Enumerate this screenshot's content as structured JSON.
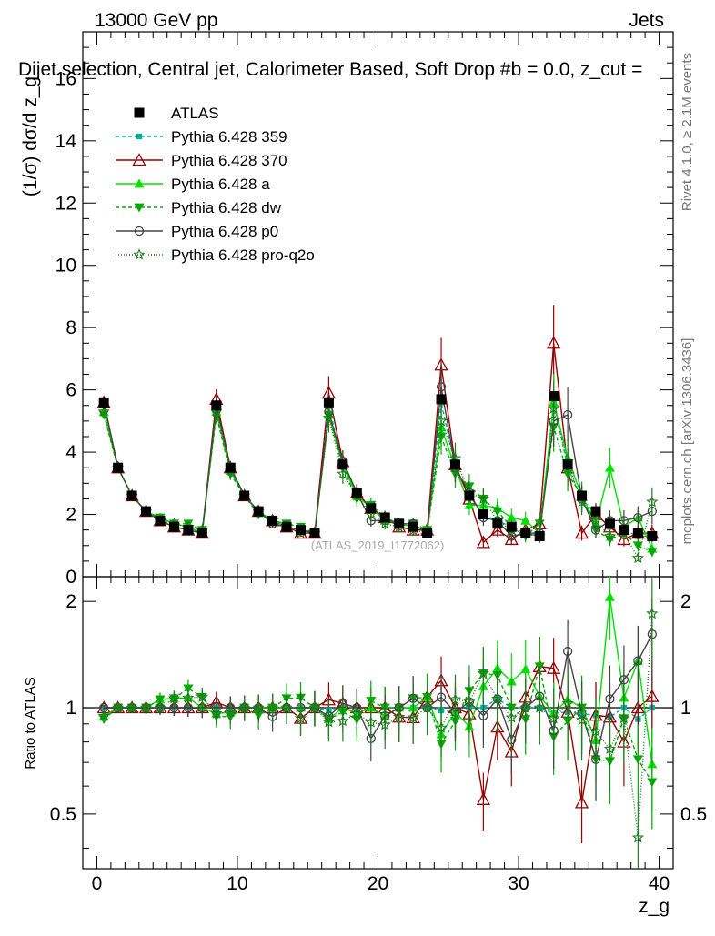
{
  "header": {
    "energy_label": "13000 GeV pp",
    "category_label": "Jets"
  },
  "side_labels": {
    "rivet": "Rivet 4.1.0, ≥ 2.1M events",
    "mcplots": "mcplots.cern.ch [arXiv:1306.3436]"
  },
  "watermark": "(ATLAS_2019_I1772062)",
  "chart_data": [
    {
      "type": "line",
      "title": "Dijet selection, Central jet, Calorimeter Based, Soft Drop #b = 0.0, z_cut =",
      "xlabel": "z_g",
      "ylabel": "(1/σ) dσ/d z_g",
      "xlim": [
        -1,
        41
      ],
      "ylim": [
        0,
        17.5
      ],
      "yticks": [
        0,
        2,
        4,
        6,
        8,
        10,
        12,
        14,
        16
      ],
      "x": [
        0.5,
        1.5,
        2.5,
        3.5,
        4.5,
        5.5,
        6.5,
        7.5,
        8.5,
        9.5,
        10.5,
        11.5,
        12.5,
        13.5,
        14.5,
        15.5,
        16.5,
        17.5,
        18.5,
        19.5,
        20.5,
        21.5,
        22.5,
        23.5,
        24.5,
        25.5,
        26.5,
        27.5,
        28.5,
        29.5,
        30.5,
        31.5,
        32.5,
        33.5,
        34.5,
        35.5,
        36.5,
        37.5,
        38.5,
        39.5
      ],
      "series": [
        {
          "name": "ATLAS",
          "color": "#000000",
          "marker": "square",
          "dash": "none",
          "values": [
            5.6,
            3.5,
            2.6,
            2.1,
            1.8,
            1.6,
            1.5,
            1.4,
            5.5,
            3.5,
            2.6,
            2.1,
            1.8,
            1.6,
            1.5,
            1.4,
            5.6,
            3.6,
            2.7,
            2.2,
            1.9,
            1.7,
            1.6,
            1.4,
            5.7,
            3.6,
            2.6,
            2.0,
            1.7,
            1.6,
            1.4,
            1.3,
            5.8,
            3.6,
            2.6,
            2.1,
            1.7,
            1.5,
            1.4,
            1.3
          ]
        },
        {
          "name": "Pythia 6.428 359",
          "color": "#00b39b",
          "marker": "square-small",
          "dash": "4,3",
          "values": [
            5.6,
            3.5,
            2.6,
            2.1,
            1.8,
            1.6,
            1.5,
            1.4,
            5.5,
            3.5,
            2.6,
            2.1,
            1.8,
            1.6,
            1.5,
            1.4,
            5.5,
            3.6,
            2.7,
            2.2,
            1.9,
            1.7,
            1.6,
            1.4,
            5.6,
            3.5,
            2.6,
            2.0,
            1.8,
            1.6,
            1.4,
            1.3,
            5.6,
            3.5,
            2.5,
            2.0,
            1.6,
            1.5,
            1.3,
            1.3
          ]
        },
        {
          "name": "Pythia 6.428 370",
          "color": "#990000",
          "marker": "triangle-open",
          "dash": "none",
          "values": [
            5.6,
            3.5,
            2.6,
            2.1,
            1.8,
            1.6,
            1.5,
            1.4,
            5.7,
            3.5,
            2.6,
            2.1,
            1.8,
            1.6,
            1.4,
            1.4,
            5.9,
            3.7,
            2.7,
            2.2,
            1.9,
            1.6,
            1.5,
            1.5,
            6.8,
            3.6,
            2.5,
            1.1,
            1.5,
            1.2,
            1.5,
            1.7,
            7.5,
            3.5,
            1.4,
            2.0,
            1.6,
            1.2,
            1.4,
            1.4
          ]
        },
        {
          "name": "Pythia 6.428 a",
          "color": "#00e000",
          "marker": "triangle",
          "dash": "none",
          "values": [
            5.3,
            3.5,
            2.6,
            2.1,
            1.9,
            1.7,
            1.6,
            1.4,
            5.3,
            3.4,
            2.6,
            2.1,
            1.8,
            1.6,
            1.5,
            1.4,
            5.2,
            3.6,
            2.6,
            2.2,
            1.8,
            1.7,
            1.6,
            1.5,
            4.8,
            3.5,
            2.3,
            2.3,
            2.2,
            1.9,
            1.8,
            1.4,
            5.6,
            3.8,
            2.6,
            1.7,
            3.5,
            1.6,
            1.9,
            0.9
          ]
        },
        {
          "name": "Pythia 6.428 dw",
          "color": "#00aa00",
          "marker": "triangle-down",
          "dash": "4,3",
          "values": [
            5.2,
            3.5,
            2.6,
            2.1,
            1.9,
            1.7,
            1.7,
            1.5,
            5.2,
            3.3,
            2.6,
            2.0,
            1.8,
            1.7,
            1.6,
            1.4,
            5.2,
            3.5,
            2.5,
            2.3,
            1.9,
            1.7,
            1.7,
            1.5,
            4.5,
            3.3,
            2.9,
            2.5,
            2.1,
            1.6,
            1.3,
            1.7,
            4.8,
            3.3,
            2.6,
            1.5,
            1.2,
            1.4,
            1.0,
            0.8
          ]
        },
        {
          "name": "Pythia 6.428 p0",
          "color": "#444444",
          "marker": "circle-open",
          "dash": "none",
          "values": [
            5.6,
            3.5,
            2.6,
            2.1,
            1.8,
            1.6,
            1.5,
            1.4,
            5.5,
            3.5,
            2.6,
            2.1,
            1.7,
            1.6,
            1.5,
            1.4,
            5.3,
            3.7,
            2.7,
            1.8,
            1.8,
            1.7,
            1.7,
            1.4,
            6.1,
            3.5,
            2.7,
            1.9,
            1.8,
            1.3,
            1.4,
            1.4,
            5.0,
            5.2,
            2.5,
            1.5,
            1.8,
            1.8,
            1.9,
            2.1
          ]
        },
        {
          "name": "Pythia 6.428 pro-q2o",
          "color": "#1e7d1e",
          "marker": "star",
          "dash": "1,2",
          "values": [
            5.3,
            3.5,
            2.6,
            2.1,
            1.8,
            1.7,
            1.6,
            1.5,
            5.3,
            3.4,
            2.6,
            2.1,
            1.8,
            1.6,
            1.4,
            1.4,
            5.1,
            3.3,
            2.6,
            2.0,
            1.7,
            1.6,
            1.5,
            1.4,
            5.0,
            3.8,
            2.7,
            2.5,
            1.8,
            1.5,
            1.4,
            1.3,
            5.4,
            3.7,
            2.4,
            1.8,
            1.3,
            1.4,
            0.6,
            2.4
          ]
        }
      ]
    },
    {
      "type": "line",
      "title": "",
      "xlabel": "z_g",
      "ylabel": "Ratio to ATLAS",
      "xlim": [
        -1,
        41
      ],
      "ylim": [
        0.35,
        2.35
      ],
      "ytick_labels": [
        "0.5",
        "1",
        "2"
      ],
      "xtick_labels": [
        "0",
        "10",
        "20",
        "30",
        "40"
      ],
      "reference_line": 1,
      "note": "Ratio series = each Pythia series divided by ATLAS values above (same colours, markers)."
    }
  ]
}
